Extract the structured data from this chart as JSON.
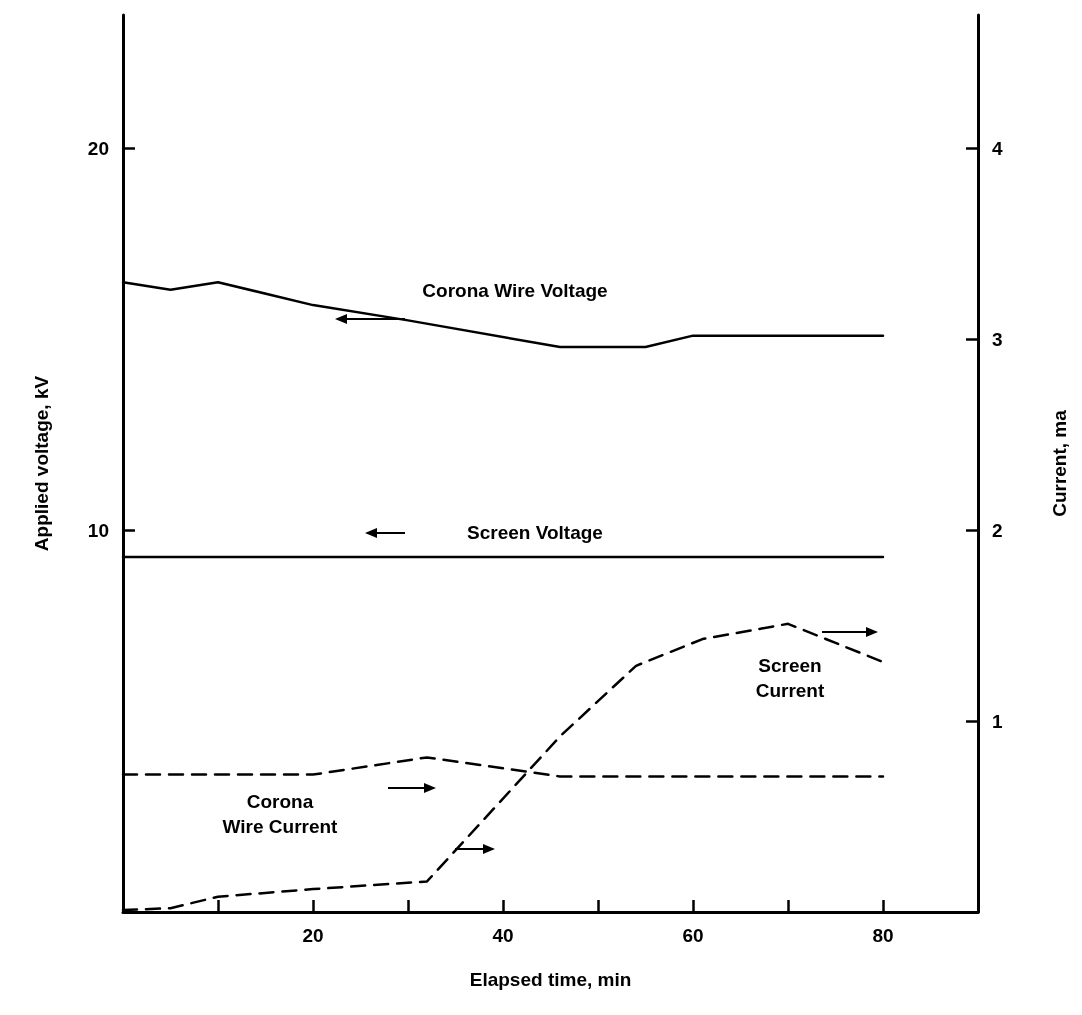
{
  "chart_data": {
    "type": "line",
    "xlabel": "Elapsed time, min",
    "ylabel": "Applied voltage, kV",
    "y2label": "Current, ma",
    "xlim": [
      0,
      90
    ],
    "xticks": [
      {
        "value": 10,
        "label": null
      },
      20,
      {
        "value": 30,
        "label": null
      },
      40,
      {
        "value": 50,
        "label": null
      },
      60,
      {
        "value": 70,
        "label": null
      },
      80
    ],
    "ylim": [
      0,
      23.5
    ],
    "yticks": [
      10,
      20
    ],
    "y2lim": [
      0,
      4.7
    ],
    "y2ticks": [
      1,
      2,
      3,
      4
    ],
    "marker": "none",
    "grid": false,
    "legend": false,
    "series": [
      {
        "name": "Corona Wire Voltage",
        "color": "#000000",
        "line_style": "solid",
        "x": [
          0,
          5,
          10,
          20,
          30,
          46,
          55,
          60,
          80
        ],
        "values": [
          16.5,
          16.3,
          16.5,
          15.9,
          15.5,
          14.8,
          14.8,
          15.1,
          15.1
        ]
      },
      {
        "name": "Screen Voltage",
        "color": "#000000",
        "line_style": "solid",
        "x": [
          0,
          80
        ],
        "values": [
          9.3,
          9.3
        ]
      },
      {
        "name": "Corona Wire Current",
        "color": "#000000",
        "line_style": "dashed",
        "axis": "y2",
        "x": [
          0,
          20,
          32,
          46,
          80
        ],
        "values": [
          0.72,
          0.72,
          0.81,
          0.71,
          0.71
        ]
      },
      {
        "name": "Screen Current",
        "color": "#000000",
        "line_style": "dashed",
        "axis": "y2",
        "x": [
          0,
          5,
          10,
          20,
          32,
          46,
          54,
          61,
          70,
          80
        ],
        "values": [
          0.01,
          0.02,
          0.08,
          0.12,
          0.16,
          0.92,
          1.29,
          1.43,
          1.51,
          1.31
        ]
      }
    ]
  }
}
